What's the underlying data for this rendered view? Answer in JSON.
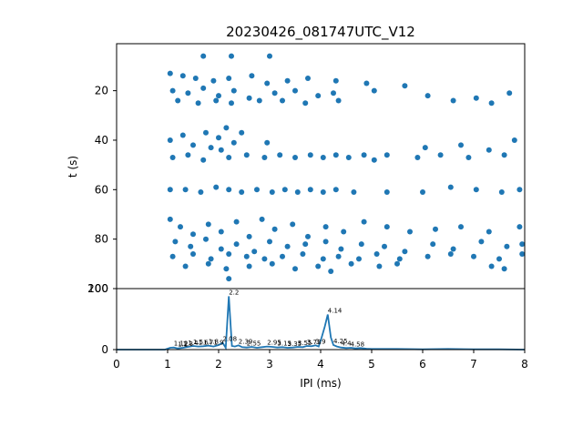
{
  "chart_data": [
    {
      "type": "scatter",
      "title": "20230426_081747UTC_V12",
      "xlabel": "",
      "ylabel": "t (s)",
      "xlim": [
        0,
        8
      ],
      "ylim": [
        100,
        1
      ],
      "y_inverted": true,
      "yticks": [
        "20",
        "40",
        "60",
        "80",
        "100"
      ],
      "marker_color": "#1f77b4",
      "points": [
        [
          1.05,
          13
        ],
        [
          1.3,
          14
        ],
        [
          1.55,
          15
        ],
        [
          1.9,
          16
        ],
        [
          2.2,
          15
        ],
        [
          2.65,
          14
        ],
        [
          2.95,
          17
        ],
        [
          3.35,
          16
        ],
        [
          3.75,
          15
        ],
        [
          4.3,
          16
        ],
        [
          4.9,
          17
        ],
        [
          5.65,
          18
        ],
        [
          1.1,
          20
        ],
        [
          1.4,
          21
        ],
        [
          1.7,
          19
        ],
        [
          2.0,
          22
        ],
        [
          2.3,
          20
        ],
        [
          2.6,
          23
        ],
        [
          3.1,
          21
        ],
        [
          3.5,
          20
        ],
        [
          3.95,
          22
        ],
        [
          4.25,
          21
        ],
        [
          5.05,
          20
        ],
        [
          6.1,
          22
        ],
        [
          7.05,
          23
        ],
        [
          7.7,
          21
        ],
        [
          1.2,
          24
        ],
        [
          1.6,
          25
        ],
        [
          1.95,
          24
        ],
        [
          2.25,
          25
        ],
        [
          2.8,
          24
        ],
        [
          3.25,
          24
        ],
        [
          3.7,
          25
        ],
        [
          4.35,
          24
        ],
        [
          6.6,
          24
        ],
        [
          7.35,
          25
        ],
        [
          1.05,
          40
        ],
        [
          1.3,
          38
        ],
        [
          1.5,
          42
        ],
        [
          1.75,
          37
        ],
        [
          2.0,
          39
        ],
        [
          2.15,
          35
        ],
        [
          2.3,
          41
        ],
        [
          2.45,
          37
        ],
        [
          2.05,
          44
        ],
        [
          1.85,
          43
        ],
        [
          1.1,
          47
        ],
        [
          1.4,
          46
        ],
        [
          1.7,
          48
        ],
        [
          2.2,
          47
        ],
        [
          2.55,
          46
        ],
        [
          2.9,
          47
        ],
        [
          3.2,
          46
        ],
        [
          3.5,
          47
        ],
        [
          3.8,
          46
        ],
        [
          4.05,
          47
        ],
        [
          4.3,
          46
        ],
        [
          4.55,
          47
        ],
        [
          4.85,
          46
        ],
        [
          5.3,
          46
        ],
        [
          5.9,
          47
        ],
        [
          6.35,
          46
        ],
        [
          6.9,
          47
        ],
        [
          7.6,
          46
        ],
        [
          2.95,
          41
        ],
        [
          6.05,
          43
        ],
        [
          6.75,
          42
        ],
        [
          7.3,
          44
        ],
        [
          7.8,
          40
        ],
        [
          5.05,
          48
        ],
        [
          1.05,
          60
        ],
        [
          1.35,
          60
        ],
        [
          1.65,
          61
        ],
        [
          1.95,
          59
        ],
        [
          2.2,
          60
        ],
        [
          2.45,
          61
        ],
        [
          2.75,
          60
        ],
        [
          3.05,
          61
        ],
        [
          3.3,
          60
        ],
        [
          3.55,
          61
        ],
        [
          3.8,
          60
        ],
        [
          4.05,
          61
        ],
        [
          4.3,
          60
        ],
        [
          4.65,
          61
        ],
        [
          5.3,
          61
        ],
        [
          6.0,
          61
        ],
        [
          6.55,
          59
        ],
        [
          7.05,
          60
        ],
        [
          7.55,
          61
        ],
        [
          7.9,
          60
        ],
        [
          1.05,
          72
        ],
        [
          1.25,
          75
        ],
        [
          1.5,
          78
        ],
        [
          1.8,
          74
        ],
        [
          2.05,
          77
        ],
        [
          2.35,
          73
        ],
        [
          2.6,
          79
        ],
        [
          2.85,
          72
        ],
        [
          3.1,
          76
        ],
        [
          3.45,
          74
        ],
        [
          3.75,
          79
        ],
        [
          4.1,
          75
        ],
        [
          4.45,
          77
        ],
        [
          4.85,
          73
        ],
        [
          5.3,
          75
        ],
        [
          5.75,
          77
        ],
        [
          6.25,
          76
        ],
        [
          6.75,
          75
        ],
        [
          7.3,
          77
        ],
        [
          7.9,
          75
        ],
        [
          1.15,
          81
        ],
        [
          1.45,
          83
        ],
        [
          1.75,
          80
        ],
        [
          2.05,
          84
        ],
        [
          2.35,
          82
        ],
        [
          2.7,
          85
        ],
        [
          3.0,
          81
        ],
        [
          3.35,
          83
        ],
        [
          3.7,
          82
        ],
        [
          4.1,
          81
        ],
        [
          4.4,
          84
        ],
        [
          4.8,
          82
        ],
        [
          5.25,
          83
        ],
        [
          5.65,
          85
        ],
        [
          6.2,
          82
        ],
        [
          6.6,
          84
        ],
        [
          7.15,
          81
        ],
        [
          7.65,
          83
        ],
        [
          7.95,
          82
        ],
        [
          1.1,
          87
        ],
        [
          1.5,
          86
        ],
        [
          1.85,
          88
        ],
        [
          2.2,
          86
        ],
        [
          2.55,
          87
        ],
        [
          2.9,
          88
        ],
        [
          3.25,
          87
        ],
        [
          3.65,
          86
        ],
        [
          4.05,
          88
        ],
        [
          4.35,
          87
        ],
        [
          4.75,
          88
        ],
        [
          5.1,
          86
        ],
        [
          5.55,
          88
        ],
        [
          6.1,
          87
        ],
        [
          6.55,
          86
        ],
        [
          7.0,
          87
        ],
        [
          7.5,
          88
        ],
        [
          7.95,
          86
        ],
        [
          1.35,
          91
        ],
        [
          1.8,
          90
        ],
        [
          2.15,
          92
        ],
        [
          2.6,
          91
        ],
        [
          3.05,
          90
        ],
        [
          3.5,
          92
        ],
        [
          3.95,
          91
        ],
        [
          4.2,
          93
        ],
        [
          4.6,
          90
        ],
        [
          5.15,
          91
        ],
        [
          5.5,
          90
        ],
        [
          7.35,
          91
        ],
        [
          7.6,
          92
        ],
        [
          2.2,
          96
        ],
        [
          1.7,
          6
        ],
        [
          2.25,
          6
        ],
        [
          3.0,
          6
        ]
      ]
    },
    {
      "type": "line",
      "title": "",
      "xlabel": "IPI (ms)",
      "ylabel": "",
      "xlim": [
        0,
        8
      ],
      "ylim": [
        0,
        200
      ],
      "xticks": [
        "0",
        "1",
        "2",
        "3",
        "4",
        "5",
        "6",
        "7",
        "8"
      ],
      "yticks": [
        "0",
        "200"
      ],
      "line_color": "#1f77b4",
      "x": [
        0,
        0.95,
        1.0,
        1.05,
        1.12,
        1.2,
        1.3,
        1.4,
        1.5,
        1.6,
        1.7,
        1.8,
        1.9,
        2.0,
        2.08,
        2.14,
        2.2,
        2.26,
        2.32,
        2.39,
        2.46,
        2.55,
        2.65,
        2.75,
        2.85,
        2.95,
        3.05,
        3.15,
        3.25,
        3.35,
        3.45,
        3.55,
        3.65,
        3.73,
        3.82,
        3.9,
        3.96,
        4.02,
        4.08,
        4.14,
        4.2,
        4.25,
        4.32,
        4.4,
        4.5,
        4.6,
        4.68,
        4.78,
        4.9,
        5.0,
        5.5,
        6.0,
        6.5,
        7.0,
        7.5,
        8.0
      ],
      "y": [
        0,
        0,
        3,
        6,
        7,
        4,
        6,
        9,
        12,
        10,
        11,
        13,
        10,
        15,
        22,
        6,
        175,
        12,
        10,
        14,
        8,
        7,
        9,
        6,
        8,
        10,
        9,
        7,
        8,
        6,
        7,
        9,
        8,
        12,
        11,
        14,
        10,
        40,
        75,
        115,
        40,
        15,
        10,
        7,
        5,
        6,
        4,
        5,
        3,
        2,
        2,
        1,
        2,
        1,
        1,
        0
      ],
      "annotations": [
        {
          "x": 1.12,
          "y": 7,
          "label": "1.12"
        },
        {
          "x": 1.2,
          "y": 4,
          "label": "1.2"
        },
        {
          "x": 1.3,
          "y": 6,
          "label": "1.3"
        },
        {
          "x": 1.4,
          "y": 9,
          "label": "1.4"
        },
        {
          "x": 1.5,
          "y": 12,
          "label": "1.5"
        },
        {
          "x": 1.6,
          "y": 10,
          "label": "1.6"
        },
        {
          "x": 1.7,
          "y": 11,
          "label": "1.7"
        },
        {
          "x": 1.8,
          "y": 13,
          "label": "1.8"
        },
        {
          "x": 1.9,
          "y": 10,
          "label": "1.9"
        },
        {
          "x": 2.08,
          "y": 22,
          "label": "2.08"
        },
        {
          "x": 2.2,
          "y": 175,
          "label": "2.2"
        },
        {
          "x": 2.39,
          "y": 14,
          "label": "2.39"
        },
        {
          "x": 2.55,
          "y": 7,
          "label": "2.55"
        },
        {
          "x": 2.95,
          "y": 10,
          "label": "2.95"
        },
        {
          "x": 3.15,
          "y": 7,
          "label": "3.15"
        },
        {
          "x": 3.35,
          "y": 6,
          "label": "3.35"
        },
        {
          "x": 3.55,
          "y": 9,
          "label": "3.55"
        },
        {
          "x": 3.73,
          "y": 12,
          "label": "3.73"
        },
        {
          "x": 3.9,
          "y": 14,
          "label": "3.9"
        },
        {
          "x": 4.14,
          "y": 115,
          "label": "4.14"
        },
        {
          "x": 4.25,
          "y": 15,
          "label": "4.25"
        },
        {
          "x": 4.4,
          "y": 7,
          "label": "4.4"
        },
        {
          "x": 4.58,
          "y": 5,
          "label": "4.58"
        }
      ]
    }
  ]
}
